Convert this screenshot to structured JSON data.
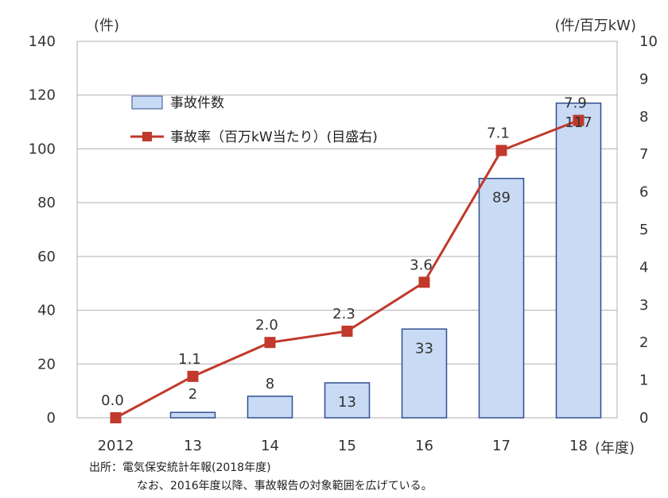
{
  "chart_data": {
    "type": "bar+line",
    "categories": [
      "2012",
      "13",
      "14",
      "15",
      "16",
      "17",
      "18"
    ],
    "series": [
      {
        "name": "事故件数",
        "type": "bar",
        "axis": "left",
        "values": [
          0,
          2,
          8,
          13,
          33,
          89,
          117
        ],
        "labels": [
          "",
          "2",
          "8",
          "13",
          "33",
          "89",
          "117"
        ],
        "color": "#c9daf5",
        "border": "#2f4f8f"
      },
      {
        "name": "事故率（百万kW当たり）(目盛右)",
        "type": "line",
        "axis": "right",
        "values": [
          0.0,
          1.1,
          2.0,
          2.3,
          3.6,
          7.1,
          7.9
        ],
        "labels": [
          "0.0",
          "1.1",
          "2.0",
          "2.3",
          "3.6",
          "7.1",
          "7.9"
        ],
        "color": "#c0392b"
      }
    ],
    "y_left": {
      "unit": "(件)",
      "ylim": [
        0,
        140
      ],
      "ticks": [
        "0",
        "20",
        "40",
        "60",
        "80",
        "100",
        "120",
        "140"
      ]
    },
    "y_right": {
      "unit": "(件/百万kW)",
      "ylim": [
        0,
        10
      ],
      "ticks": [
        "0",
        "1",
        "2",
        "3",
        "4",
        "5",
        "6",
        "7",
        "8",
        "9",
        "10"
      ]
    },
    "x_unit": "(年度)",
    "grid": true,
    "legend_position": "top-left"
  },
  "source": {
    "line1": "出所：電気保安統計年報(2018年度)",
    "line2": "なお、2016年度以降、事故報告の対象範囲を広げている。"
  }
}
